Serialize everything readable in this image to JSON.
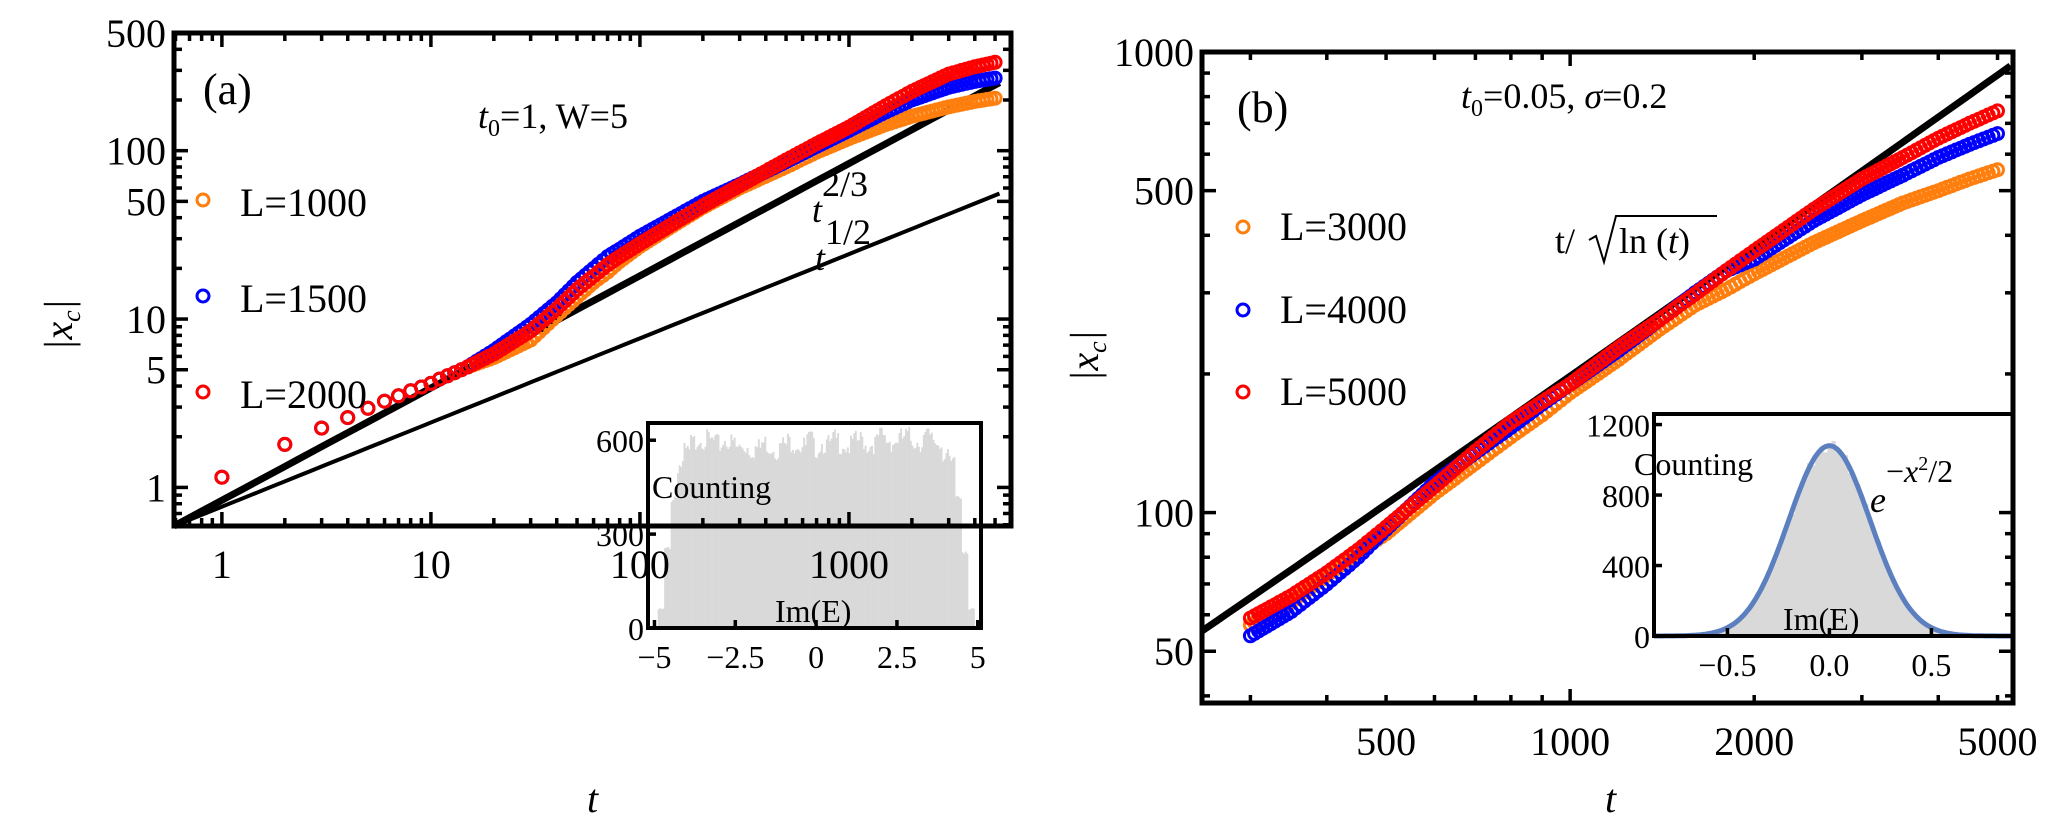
{
  "chart_data": [
    {
      "panel": "(a)",
      "type": "scatter",
      "title": "",
      "annotation": "t0=1, W=5",
      "annotation_parts": {
        "t_sym": "t",
        "sub": "0",
        "rest": "=1, W=5"
      },
      "xlabel": "t",
      "ylabel": "|x_c|",
      "xscale": "log",
      "yscale": "log",
      "xlim": [
        0.59,
        5960
      ],
      "ylim": [
        0.59,
        500
      ],
      "xticks": [
        1,
        10,
        100,
        1000
      ],
      "xtick_labels": [
        "1",
        "10",
        "100",
        "1000"
      ],
      "yticks": [
        1,
        5,
        10,
        50,
        100,
        500
      ],
      "ytick_labels": [
        "1",
        "5",
        "10",
        "50",
        "100",
        "500"
      ],
      "legend": {
        "placement": "left",
        "entries": [
          "L=1000",
          "L=1500",
          "L=2000"
        ]
      },
      "series": [
        {
          "name": "L=1000",
          "color": "#ff7f0e",
          "t": [
            1,
            2,
            3,
            4,
            5,
            6,
            7,
            8,
            9,
            10,
            11,
            12,
            13,
            14,
            15,
            20,
            30,
            40,
            50,
            60,
            70,
            80,
            100,
            150,
            200,
            300,
            500,
            700,
            1000,
            1500,
            2000,
            3000,
            4000,
            5000
          ],
          "x": [
            1.15,
            1.8,
            2.25,
            2.6,
            2.95,
            3.25,
            3.5,
            3.75,
            3.95,
            4.15,
            4.4,
            4.6,
            4.8,
            5.0,
            5.2,
            5.9,
            7.5,
            10.5,
            13.5,
            16.5,
            19,
            22,
            27,
            37,
            46,
            60,
            80,
            98,
            118,
            143,
            160,
            182,
            196,
            205
          ]
        },
        {
          "name": "L=1500",
          "color": "#0000ff",
          "t": [
            1,
            2,
            3,
            4,
            5,
            6,
            7,
            8,
            9,
            10,
            11,
            12,
            13,
            14,
            15,
            20,
            30,
            40,
            50,
            60,
            70,
            80,
            100,
            150,
            200,
            300,
            500,
            700,
            1000,
            1500,
            2000,
            3000,
            4000,
            5000
          ],
          "x": [
            1.15,
            1.8,
            2.25,
            2.6,
            2.95,
            3.25,
            3.5,
            3.75,
            3.95,
            4.15,
            4.4,
            4.6,
            4.8,
            5.0,
            5.2,
            6.5,
            9.3,
            12.5,
            16.5,
            20,
            23.5,
            26,
            31,
            41,
            50,
            63,
            86,
            106,
            132,
            170,
            200,
            238,
            258,
            270
          ]
        },
        {
          "name": "L=2000",
          "color": "#ff0000",
          "t": [
            1,
            2,
            3,
            4,
            5,
            6,
            7,
            8,
            9,
            10,
            11,
            12,
            13,
            14,
            15,
            20,
            30,
            40,
            50,
            60,
            70,
            80,
            100,
            150,
            200,
            300,
            500,
            700,
            1000,
            1500,
            2000,
            3000,
            4000,
            5000
          ],
          "x": [
            1.15,
            1.8,
            2.25,
            2.6,
            2.95,
            3.25,
            3.5,
            3.75,
            3.95,
            4.15,
            4.4,
            4.6,
            4.8,
            5.0,
            5.2,
            6.2,
            8.5,
            11.5,
            15,
            18,
            21,
            23.5,
            28,
            38,
            47,
            62,
            88,
            110,
            138,
            185,
            225,
            285,
            315,
            335
          ]
        }
      ],
      "reference_lines": [
        {
          "label": "t^{2/3}",
          "label_base": "t",
          "label_exp": "2/3",
          "exponent": 0.6667,
          "coef": 1.4,
          "width": "thick"
        },
        {
          "label": "t^{1/2}",
          "label_base": "t",
          "label_exp": "1/2",
          "exponent": 0.5,
          "coef": 1.3,
          "width": "thin"
        }
      ],
      "inset": {
        "type": "bar",
        "ylabel": "Counting",
        "xlabel": "Im(E)",
        "xlim": [
          -5.2,
          5.1
        ],
        "ylim": [
          0,
          655
        ],
        "xticks": [
          -5,
          -2.5,
          0,
          2.5,
          5
        ],
        "xtick_labels": [
          "−5",
          "−2.5",
          "0",
          "2.5",
          "5"
        ],
        "yticks": [
          0,
          300,
          600
        ],
        "ytick_labels": [
          "0",
          "300",
          "600"
        ],
        "color": "#d9d9d9",
        "description": "approximately uniform distribution on [-4.8, 4.8], ~570-610 counts with edge roll-off",
        "bin_centers": [
          -4.8,
          -4.6,
          -4.4,
          -4.2,
          -4.0,
          -3.8,
          -3.6,
          -3.4,
          -3.2,
          -3.0,
          -2.8,
          -2.6,
          -2.4,
          -2.2,
          -2.0,
          -1.8,
          -1.6,
          -1.4,
          -1.2,
          -1.0,
          -0.8,
          -0.6,
          -0.4,
          -0.2,
          0.0,
          0.2,
          0.4,
          0.6,
          0.8,
          1.0,
          1.2,
          1.4,
          1.6,
          1.8,
          2.0,
          2.2,
          2.4,
          2.6,
          2.8,
          3.0,
          3.2,
          3.4,
          3.6,
          3.8,
          4.0,
          4.2,
          4.4,
          4.6,
          4.8
        ],
        "counts": [
          60,
          250,
          420,
          520,
          560,
          590,
          610,
          600,
          595,
          585,
          600,
          590,
          575,
          580,
          570,
          575,
          590,
          580,
          570,
          585,
          595,
          590,
          580,
          600,
          575,
          590,
          585,
          600,
          590,
          580,
          595,
          600,
          585,
          590,
          610,
          600,
          595,
          605,
          610,
          600,
          595,
          610,
          600,
          590,
          560,
          520,
          420,
          250,
          60
        ]
      }
    },
    {
      "panel": "(b)",
      "type": "scatter",
      "title": "",
      "annotation": "t0=0.05, σ=0.2",
      "annotation_parts": {
        "t_sym": "t",
        "sub": "0",
        "rest": "=0.05, ",
        "sigma": "σ",
        "rest2": "=0.2"
      },
      "xlabel": "t",
      "ylabel": "|x_c|",
      "xscale": "log",
      "yscale": "log",
      "xlim": [
        250,
        5300
      ],
      "ylim": [
        38.6,
        1000
      ],
      "xticks": [
        500,
        1000,
        2000,
        5000
      ],
      "xtick_labels": [
        "500",
        "1000",
        "2000",
        "5000"
      ],
      "yticks": [
        50,
        100,
        500,
        1000
      ],
      "ytick_labels": [
        "50",
        "100",
        "500",
        "1000"
      ],
      "legend": {
        "placement": "left",
        "entries": [
          "L=3000",
          "L=4000",
          "L=5000"
        ]
      },
      "series": [
        {
          "name": "L=3000",
          "color": "#ff7f0e",
          "t": [
            300,
            350,
            400,
            450,
            500,
            600,
            700,
            800,
            900,
            1000,
            1200,
            1400,
            1600,
            1800,
            2000,
            2500,
            3000,
            3500,
            4000,
            4500,
            5000
          ],
          "x": [
            57,
            64,
            73,
            82,
            90,
            110,
            128,
            146,
            163,
            182,
            215,
            250,
            282,
            305,
            330,
            385,
            430,
            470,
            500,
            530,
            555
          ]
        },
        {
          "name": "L=4000",
          "color": "#0000ff",
          "t": [
            300,
            350,
            400,
            450,
            500,
            600,
            700,
            800,
            900,
            1000,
            1200,
            1400,
            1600,
            1800,
            2000,
            2500,
            3000,
            3500,
            4000,
            4500,
            5000
          ],
          "x": [
            54,
            61,
            70,
            80,
            92,
            116,
            135,
            153,
            172,
            190,
            225,
            262,
            300,
            335,
            355,
            430,
            490,
            540,
            590,
            630,
            665
          ]
        },
        {
          "name": "L=5000",
          "color": "#ff0000",
          "t": [
            300,
            350,
            400,
            450,
            500,
            600,
            700,
            800,
            900,
            1000,
            1200,
            1400,
            1600,
            1800,
            2000,
            2500,
            3000,
            3500,
            4000,
            4500,
            5000
          ],
          "x": [
            59,
            66,
            74,
            83,
            93,
            114,
            136,
            157,
            174,
            190,
            228,
            262,
            298,
            335,
            370,
            455,
            530,
            590,
            650,
            700,
            745
          ]
        }
      ],
      "reference_lines": [
        {
          "label": "t/√ln(t)",
          "label_prefix": "t/",
          "label_root": "ln (",
          "label_t": "t",
          "label_close": ")",
          "formula": "t/sqrt(ln t)",
          "coef": 0.52,
          "width": "thick"
        }
      ],
      "inset": {
        "type": "bar",
        "ylabel": "Counting",
        "xlabel": "Im(E)",
        "fit_label": "e^{-x^2/2}",
        "fit_label_base": "e",
        "fit_label_exp_minus": "−",
        "fit_label_x": "x",
        "fit_label_sq": "2",
        "fit_label_tail": "/2",
        "xlim": [
          -0.86,
          0.9
        ],
        "ylim": [
          0,
          1260
        ],
        "xticks": [
          -0.5,
          0.0,
          0.5
        ],
        "xtick_labels": [
          "−0.5",
          "0.0",
          "0.5"
        ],
        "yticks": [
          0,
          400,
          800,
          1200
        ],
        "ytick_labels": [
          "0",
          "400",
          "800",
          "1200"
        ],
        "color": "#d9d9d9",
        "fit_color": "#5b7fbf",
        "gaussian": {
          "peak": 1080,
          "mean": 0.0,
          "sigma": 0.2
        }
      }
    }
  ]
}
